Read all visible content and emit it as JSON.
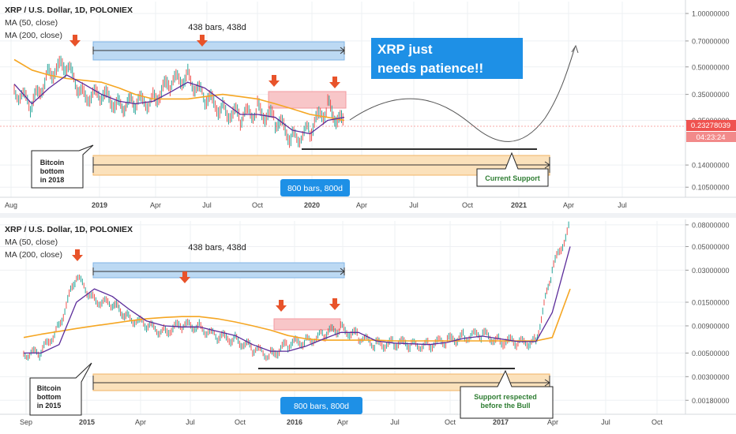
{
  "colors": {
    "ma50": "#5b2c9a",
    "ma200": "#f5a623",
    "price_up": "#26a69a",
    "price_down": "#ef5350",
    "arrow": "#e8532a",
    "blue_box": "#bcd9f3",
    "orange_box": "#fbe1bb",
    "pink_box": "#f8c6c8",
    "callout_bg": "#1e90e6",
    "badge_bg": "#1e90e6",
    "price_badge": "#ef5350"
  },
  "chart_data": [
    {
      "type": "line",
      "panel": "top",
      "title": "XRP / U.S. Dollar, 1D, POLONIEX",
      "legend": [
        "MA (50, close)",
        "MA (200, close)"
      ],
      "x_tick_labels": [
        "Aug",
        "2019",
        "Apr",
        "Jul",
        "Oct",
        "2020",
        "Apr",
        "Jul",
        "Oct",
        "2021",
        "Apr",
        "Jul"
      ],
      "y_scale": "log",
      "y_tick_labels": [
        "1.00000000",
        "0.70000000",
        "0.50000000",
        "0.35000000",
        "0.25000000",
        "0.14000000",
        "0.10500000"
      ],
      "y_ticks": [
        1.0,
        0.7,
        0.5,
        0.35,
        0.25,
        0.14,
        0.105
      ],
      "ylim": [
        0.095,
        1.12
      ],
      "price_label": "0.23278039",
      "countdown_label": "04:23:24",
      "measure_label": "438 bars, 438d",
      "range_label": "800 bars, 800d",
      "annotation": "Bitcoin bottom in 2018",
      "support_label": "Current Support",
      "callout_line1": "XRP just",
      "callout_line2": "needs patience!!",
      "x": [
        "2018-08",
        "2018-09",
        "2018-10",
        "2018-11",
        "2018-12",
        "2019-01",
        "2019-02",
        "2019-03",
        "2019-04",
        "2019-05",
        "2019-06",
        "2019-07",
        "2019-08",
        "2019-09",
        "2019-10",
        "2019-11",
        "2019-12",
        "2020-01",
        "2020-02",
        "2020-03"
      ],
      "series": [
        {
          "name": "XRP / U.S. Dollar",
          "values": [
            0.38,
            0.3,
            0.47,
            0.5,
            0.35,
            0.34,
            0.31,
            0.31,
            0.33,
            0.4,
            0.45,
            0.33,
            0.29,
            0.26,
            0.29,
            0.25,
            0.2,
            0.22,
            0.3,
            0.23
          ]
        },
        {
          "name": "MA (50, close)",
          "values": [
            0.4,
            0.31,
            0.38,
            0.45,
            0.4,
            0.35,
            0.32,
            0.31,
            0.32,
            0.36,
            0.41,
            0.38,
            0.32,
            0.27,
            0.27,
            0.26,
            0.22,
            0.21,
            0.25,
            0.26
          ]
        },
        {
          "name": "MA (200, close)",
          "values": [
            0.55,
            0.48,
            0.45,
            0.43,
            0.42,
            0.41,
            0.38,
            0.35,
            0.33,
            0.33,
            0.33,
            0.34,
            0.35,
            0.34,
            0.33,
            0.31,
            0.29,
            0.27,
            0.26,
            0.25
          ]
        }
      ]
    },
    {
      "type": "line",
      "panel": "bottom",
      "title": "XRP / U.S. Dollar, 1D, POLONIEX",
      "legend": [
        "MA (50, close)",
        "MA (200, close)"
      ],
      "x_tick_labels": [
        "Sep",
        "2015",
        "Apr",
        "Jul",
        "Oct",
        "2016",
        "Apr",
        "Jul",
        "Oct",
        "2017",
        "Apr",
        "Jul",
        "Oct"
      ],
      "y_scale": "log",
      "y_tick_labels": [
        "0.08000000",
        "0.05000000",
        "0.03000000",
        "0.01500000",
        "0.00900000",
        "0.00500000",
        "0.00300000",
        "0.00180000"
      ],
      "y_ticks": [
        0.08,
        0.05,
        0.03,
        0.015,
        0.009,
        0.005,
        0.003,
        0.0018
      ],
      "ylim": [
        0.0014,
        0.09
      ],
      "measure_label": "438 bars, 438d",
      "range_label": "800 bars, 800d",
      "annotation": "Bitcoin bottom in 2015",
      "support_label": "Support respected before the Bull",
      "x": [
        "2014-09",
        "2014-10",
        "2014-11",
        "2014-12",
        "2015-01",
        "2015-02",
        "2015-03",
        "2015-04",
        "2015-05",
        "2015-06",
        "2015-07",
        "2015-08",
        "2015-09",
        "2015-10",
        "2015-11",
        "2015-12",
        "2016-01",
        "2016-02",
        "2016-03",
        "2016-04",
        "2016-05",
        "2016-06",
        "2016-07",
        "2016-08",
        "2016-09",
        "2016-10",
        "2016-11",
        "2016-12",
        "2017-01",
        "2017-02",
        "2017-03",
        "2017-04"
      ],
      "series": [
        {
          "name": "XRP / U.S. Dollar",
          "values": [
            0.005,
            0.005,
            0.009,
            0.026,
            0.016,
            0.014,
            0.011,
            0.009,
            0.008,
            0.009,
            0.009,
            0.007,
            0.0068,
            0.0055,
            0.0048,
            0.006,
            0.0065,
            0.0075,
            0.0085,
            0.0072,
            0.006,
            0.0062,
            0.006,
            0.006,
            0.0065,
            0.0072,
            0.0075,
            0.0065,
            0.0062,
            0.0065,
            0.03,
            0.08
          ]
        },
        {
          "name": "MA (50, close)",
          "values": [
            0.005,
            0.005,
            0.006,
            0.015,
            0.02,
            0.017,
            0.013,
            0.01,
            0.009,
            0.0088,
            0.0088,
            0.008,
            0.0073,
            0.006,
            0.0052,
            0.0052,
            0.0058,
            0.0068,
            0.0078,
            0.0078,
            0.0065,
            0.0062,
            0.0061,
            0.006,
            0.0063,
            0.0069,
            0.0072,
            0.0068,
            0.0064,
            0.0064,
            0.012,
            0.05
          ]
        },
        {
          "name": "MA (200, close)",
          "values": [
            0.007,
            0.0075,
            0.008,
            0.0085,
            0.009,
            0.0095,
            0.01,
            0.0105,
            0.0108,
            0.011,
            0.011,
            0.0105,
            0.0098,
            0.009,
            0.0082,
            0.0073,
            0.0068,
            0.0066,
            0.0066,
            0.0066,
            0.0066,
            0.0065,
            0.0065,
            0.0065,
            0.0065,
            0.0065,
            0.0065,
            0.0065,
            0.0065,
            0.0065,
            0.007,
            0.02
          ]
        }
      ]
    }
  ]
}
